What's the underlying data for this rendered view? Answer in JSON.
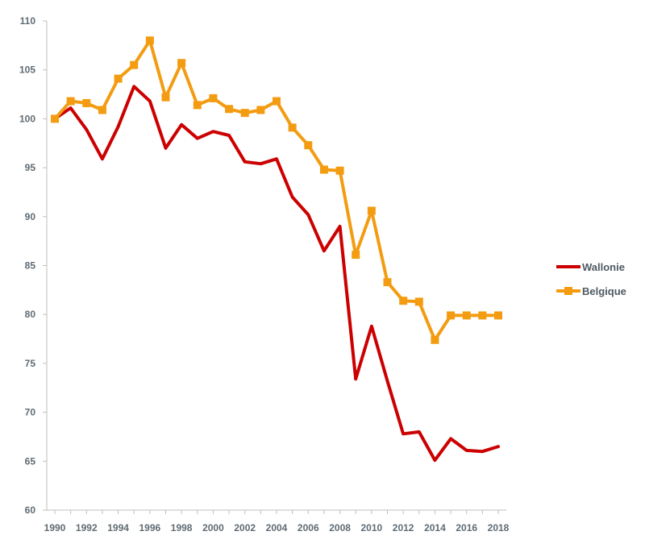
{
  "chart_data": {
    "type": "line",
    "title": "",
    "xlabel": "",
    "ylabel": "",
    "x": [
      1990,
      1991,
      1992,
      1993,
      1994,
      1995,
      1996,
      1997,
      1998,
      1999,
      2000,
      2001,
      2002,
      2003,
      2004,
      2005,
      2006,
      2007,
      2008,
      2009,
      2010,
      2011,
      2012,
      2013,
      2014,
      2015,
      2016,
      2017,
      2018
    ],
    "x_tick_labels": [
      "1990",
      "1992",
      "1994",
      "1996",
      "1998",
      "2000",
      "2002",
      "2004",
      "2006",
      "2008",
      "2010",
      "2012",
      "2014",
      "2016",
      "2018"
    ],
    "xlim": [
      1990,
      2018
    ],
    "ylim": [
      60,
      110
    ],
    "y_ticks": [
      60,
      65,
      70,
      75,
      80,
      85,
      90,
      95,
      100,
      105,
      110
    ],
    "grid": false,
    "legend_position": "right",
    "series": [
      {
        "name": "Wallonie",
        "color": "#cc0000",
        "marker": "none",
        "values": [
          100.0,
          101.1,
          98.9,
          95.9,
          99.2,
          103.3,
          101.8,
          97.0,
          99.4,
          98.0,
          98.7,
          98.3,
          95.6,
          95.4,
          95.9,
          92.0,
          90.2,
          86.5,
          89.0,
          73.4,
          78.8,
          73.2,
          67.8,
          68.0,
          65.1,
          67.3,
          66.1,
          66.0,
          66.5
        ]
      },
      {
        "name": "Belgique",
        "color": "#f39c12",
        "marker": "square",
        "values": [
          100.0,
          101.8,
          101.6,
          100.9,
          104.1,
          105.5,
          108.0,
          102.2,
          105.7,
          101.4,
          102.1,
          101.0,
          100.6,
          100.9,
          101.8,
          99.1,
          97.3,
          94.8,
          94.7,
          86.1,
          90.6,
          83.3,
          81.4,
          81.3,
          77.4,
          79.9,
          79.9,
          79.9,
          79.9
        ]
      }
    ]
  }
}
